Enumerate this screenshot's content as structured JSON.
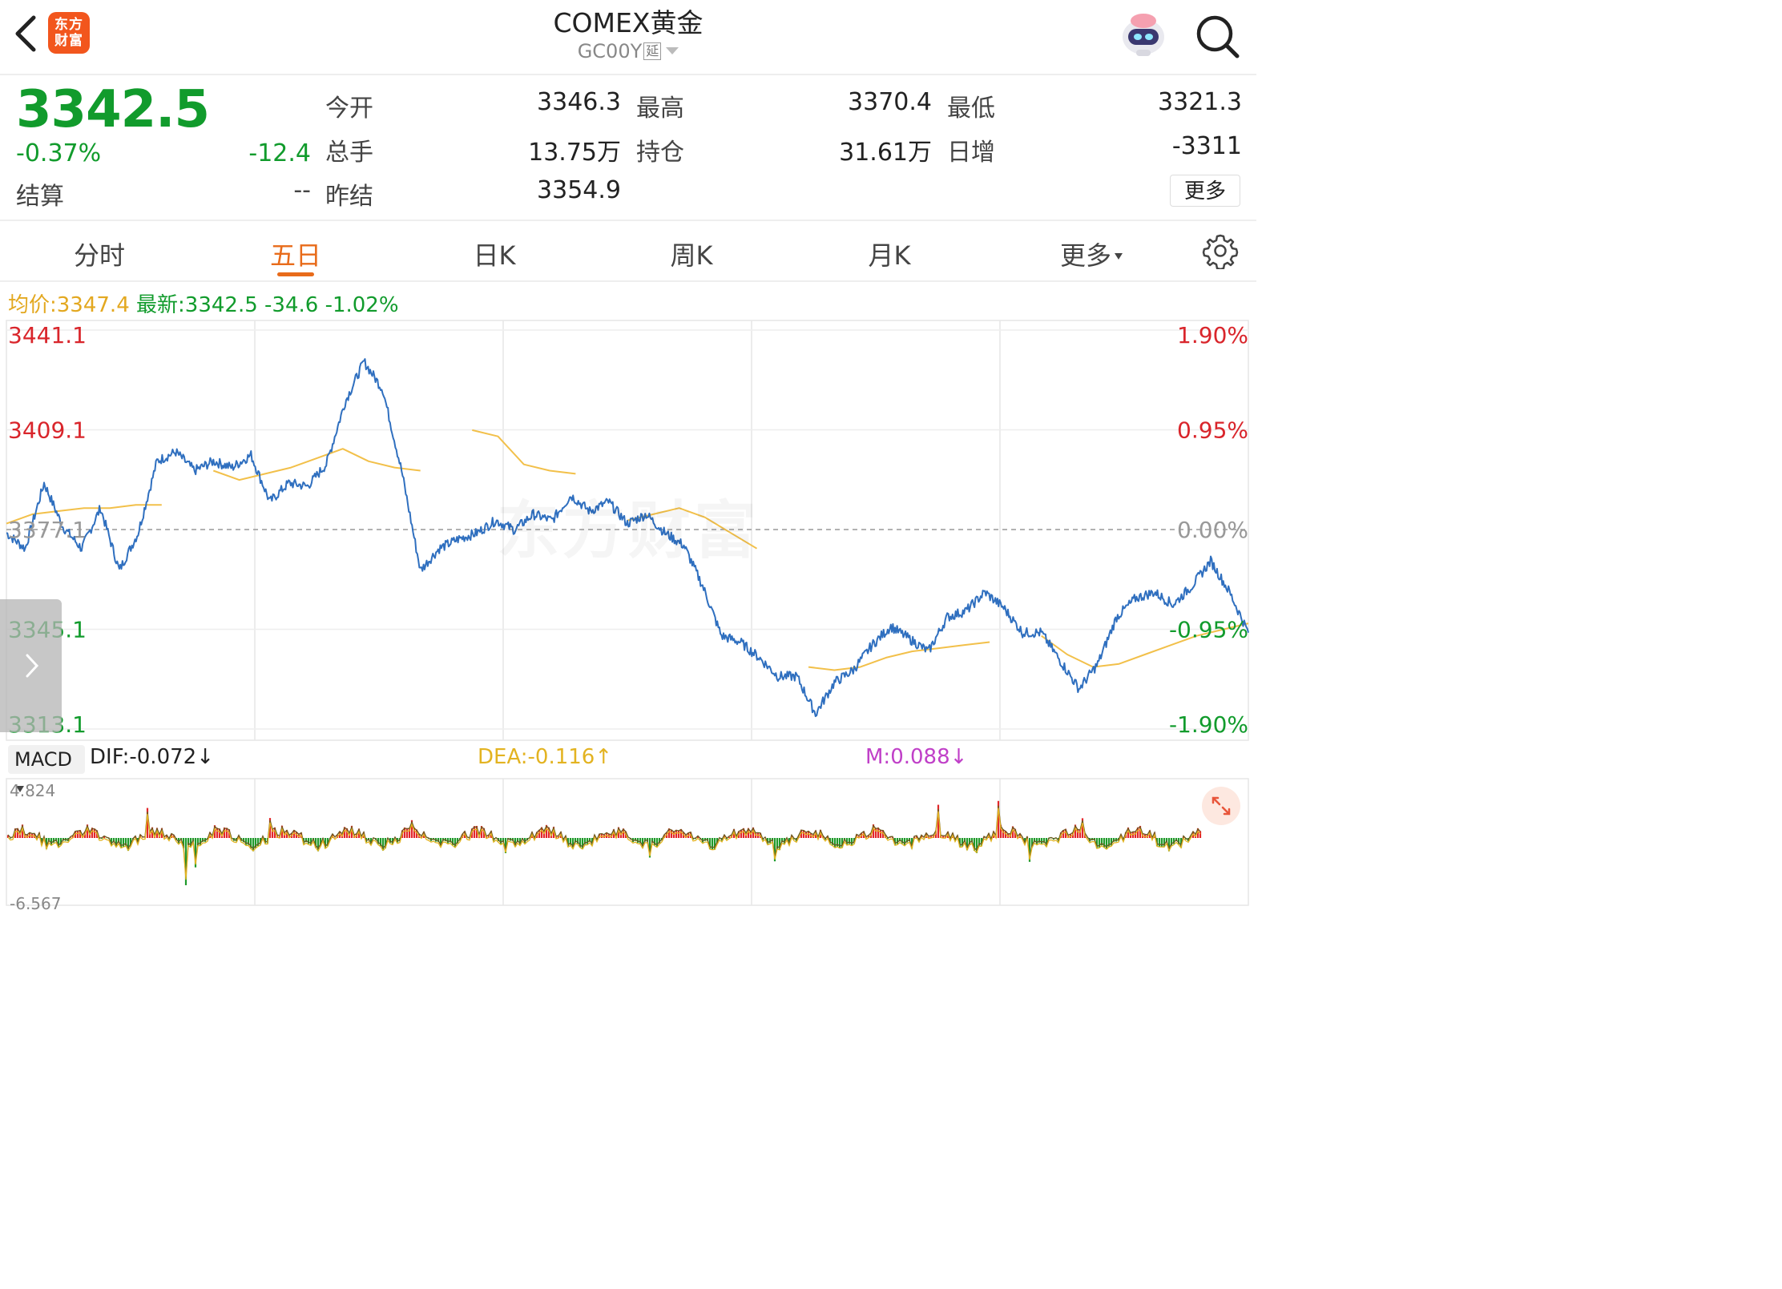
{
  "header": {
    "title": "COMEX黄金",
    "code": "GC00Y",
    "delay_tag": "延",
    "logo_line1": "东方",
    "logo_line2": "财富"
  },
  "quote": {
    "price": "3342.5",
    "change_pct": "-0.37%",
    "change": "-12.4",
    "settle_label": "结算",
    "settle_value": "--",
    "open_label": "今开",
    "open_value": "3346.3",
    "high_label": "最高",
    "high_value": "3370.4",
    "low_label": "最低",
    "low_value": "3321.3",
    "volume_label": "总手",
    "volume_value": "13.75万",
    "oi_label": "持仓",
    "oi_value": "31.61万",
    "daily_inc_label": "日增",
    "daily_inc_value": "-3311",
    "prev_settle_label": "昨结",
    "prev_settle_value": "3354.9",
    "more_label": "更多"
  },
  "tabs": [
    "分时",
    "五日",
    "日K",
    "周K",
    "月K",
    "更多"
  ],
  "active_tab": "五日",
  "info_line": {
    "avg_label": "均价:",
    "avg_value": "3347.4",
    "latest_label": "最新:",
    "latest_value": "3342.5",
    "latest_change": "-34.6",
    "latest_pct": "-1.02%"
  },
  "watermark": "东方财富",
  "chart_data": {
    "type": "line",
    "title": "",
    "y_axis_left": [
      "3441.1",
      "3409.1",
      "3377.1",
      "3345.1",
      "3313.1"
    ],
    "y_axis_right": [
      "1.90%",
      "0.95%",
      "0.00%",
      "-0.95%",
      "-1.90%"
    ],
    "ylim": [
      3313.1,
      3441.1
    ],
    "reference_price": 3377.1,
    "days": 5,
    "series": [
      {
        "name": "price",
        "color": "#2f6fbf",
        "values": [
          3376,
          3371,
          3392,
          3378,
          3371,
          3384,
          3364,
          3376,
          3399,
          3402,
          3396,
          3399,
          3397,
          3401,
          3386,
          3392,
          3391,
          3398,
          3418,
          3431,
          3422,
          3396,
          3364,
          3371,
          3374,
          3376,
          3380,
          3377,
          3382,
          3380,
          3388,
          3383,
          3386,
          3379,
          3382,
          3376,
          3372,
          3359,
          3343,
          3341,
          3336,
          3330,
          3330,
          3318,
          3328,
          3332,
          3340,
          3346,
          3342,
          3338,
          3349,
          3351,
          3357,
          3352,
          3344,
          3344,
          3335,
          3326,
          3334,
          3349,
          3355,
          3357,
          3353,
          3359,
          3367,
          3357,
          3344
        ]
      },
      {
        "name": "avg",
        "color": "#f2c04a",
        "values": [
          3379,
          3382,
          3383,
          3384,
          3384,
          3385,
          3385,
          null,
          3396,
          3393,
          3395,
          3397,
          3400,
          3403,
          3399,
          3397,
          3396,
          null,
          3409,
          3407,
          3398,
          3396,
          3395,
          null,
          3380,
          3382,
          3384,
          3381,
          3376,
          3371,
          null,
          3333,
          3332,
          3333,
          3336,
          3338,
          3339,
          3340,
          3341,
          null,
          3343,
          3337,
          3333,
          3334,
          3337,
          3340,
          3343,
          3345,
          3347
        ]
      }
    ]
  },
  "macd": {
    "indicator": "MACD",
    "dif": "DIF:-0.072↓",
    "dea": "DEA:-0.116↑",
    "m": "M:0.088↓",
    "y_max": "4.824",
    "y_min": "-6.567",
    "colors": {
      "up": "#e3262a",
      "down": "#1f9a2a",
      "dif": "#6b5a1e",
      "dea": "#e3b321",
      "m": "#c040c8"
    }
  },
  "colors": {
    "up": "#d9252b",
    "down": "#119b2c",
    "accent": "#e86b1a",
    "price_line": "#2f6fbf",
    "avg_line": "#f2c04a"
  },
  "icons": [
    "back-arrow-icon",
    "eastmoney-logo",
    "robot-assistant-icon",
    "search-icon",
    "gear-icon",
    "chevron-right-icon",
    "expand-icon"
  ]
}
